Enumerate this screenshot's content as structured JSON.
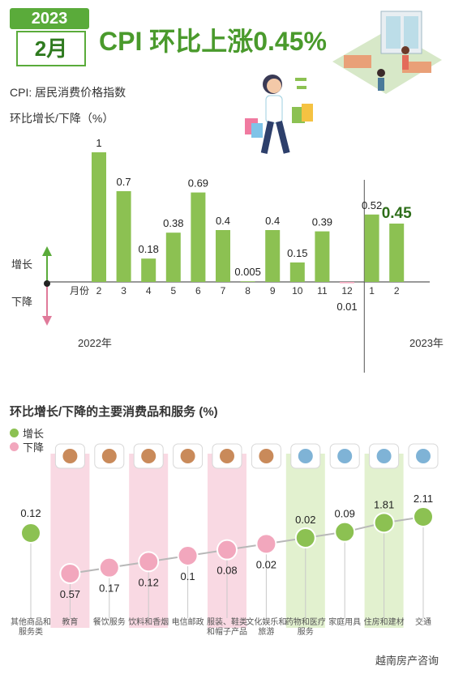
{
  "header": {
    "year": "2023",
    "month": "2月",
    "title": "CPI 环比上涨0.45%",
    "subtitle_cpi": "CPI: 居民消费价格指数",
    "subtitle_unit": "环比增长/下降（%）"
  },
  "axis_side": {
    "up": "增长",
    "down": "下降",
    "month_label": "月份"
  },
  "year_labels": {
    "left": "2022年",
    "right": "2023年"
  },
  "section2": {
    "title": "环比增长/下降的主要消费品和服务 (%)",
    "legend_up": "增长",
    "legend_down": "下降"
  },
  "colors": {
    "green": "#8cc152",
    "green_dark": "#4a9a2c",
    "pink": "#f2a7bd",
    "pink_band": "#f9d9e3",
    "green_band": "#e2f1cf"
  },
  "icons": [
    "graduation-cap-icon",
    "food-plate-icon",
    "beverage-icon",
    "radio-tower-icon",
    "shoes-icon",
    "media-play-icon",
    "medicine-icon",
    "washing-machine-icon",
    "building-bricks-icon",
    "traffic-light-icon"
  ],
  "brand": "越南房产咨询",
  "chart_data": [
    {
      "type": "bar",
      "title": "",
      "categories": [
        "2",
        "3",
        "4",
        "5",
        "6",
        "7",
        "8",
        "9",
        "10",
        "11",
        "12",
        "1",
        "2"
      ],
      "values": [
        1,
        0.7,
        0.18,
        0.38,
        0.69,
        0.4,
        0.005,
        0.4,
        0.15,
        0.39,
        -0.01,
        0.52,
        0.45
      ],
      "value_labels": [
        "1",
        "0.7",
        "0.18",
        "0.38",
        "0.69",
        "0.4",
        "0.005",
        "0.4",
        "0.15",
        "0.39",
        "0.01",
        "0.52",
        "0.45"
      ],
      "xlabel": "月份",
      "ylabel": "环比增长/下降（%）",
      "ylim": [
        -0.3,
        1.05
      ]
    },
    {
      "type": "scatter",
      "title": "环比增长/下降的主要消费品和服务 (%)",
      "categories": [
        "其他商品和服务类",
        "教育",
        "餐饮服务",
        "饮料和香烟",
        "电信邮政",
        "服装、鞋类和帽子产品",
        "文化娱乐和旅游",
        "药物和医疗服务",
        "家庭用具",
        "住房和建材",
        "交通"
      ],
      "values": [
        0.12,
        -0.57,
        -0.17,
        -0.12,
        -0.1,
        -0.08,
        -0.02,
        0.02,
        0.09,
        1.81,
        2.11
      ],
      "value_labels": [
        "0.12",
        "0.57",
        "0.17",
        "0.12",
        "0.1",
        "0.08",
        "0.02",
        "0.02",
        "0.09",
        "1.81",
        "2.11"
      ],
      "series": [
        {
          "name": "增长",
          "indices": [
            0,
            7,
            8,
            9,
            10
          ]
        },
        {
          "name": "下降",
          "indices": [
            1,
            2,
            3,
            4,
            5,
            6
          ]
        }
      ]
    }
  ]
}
